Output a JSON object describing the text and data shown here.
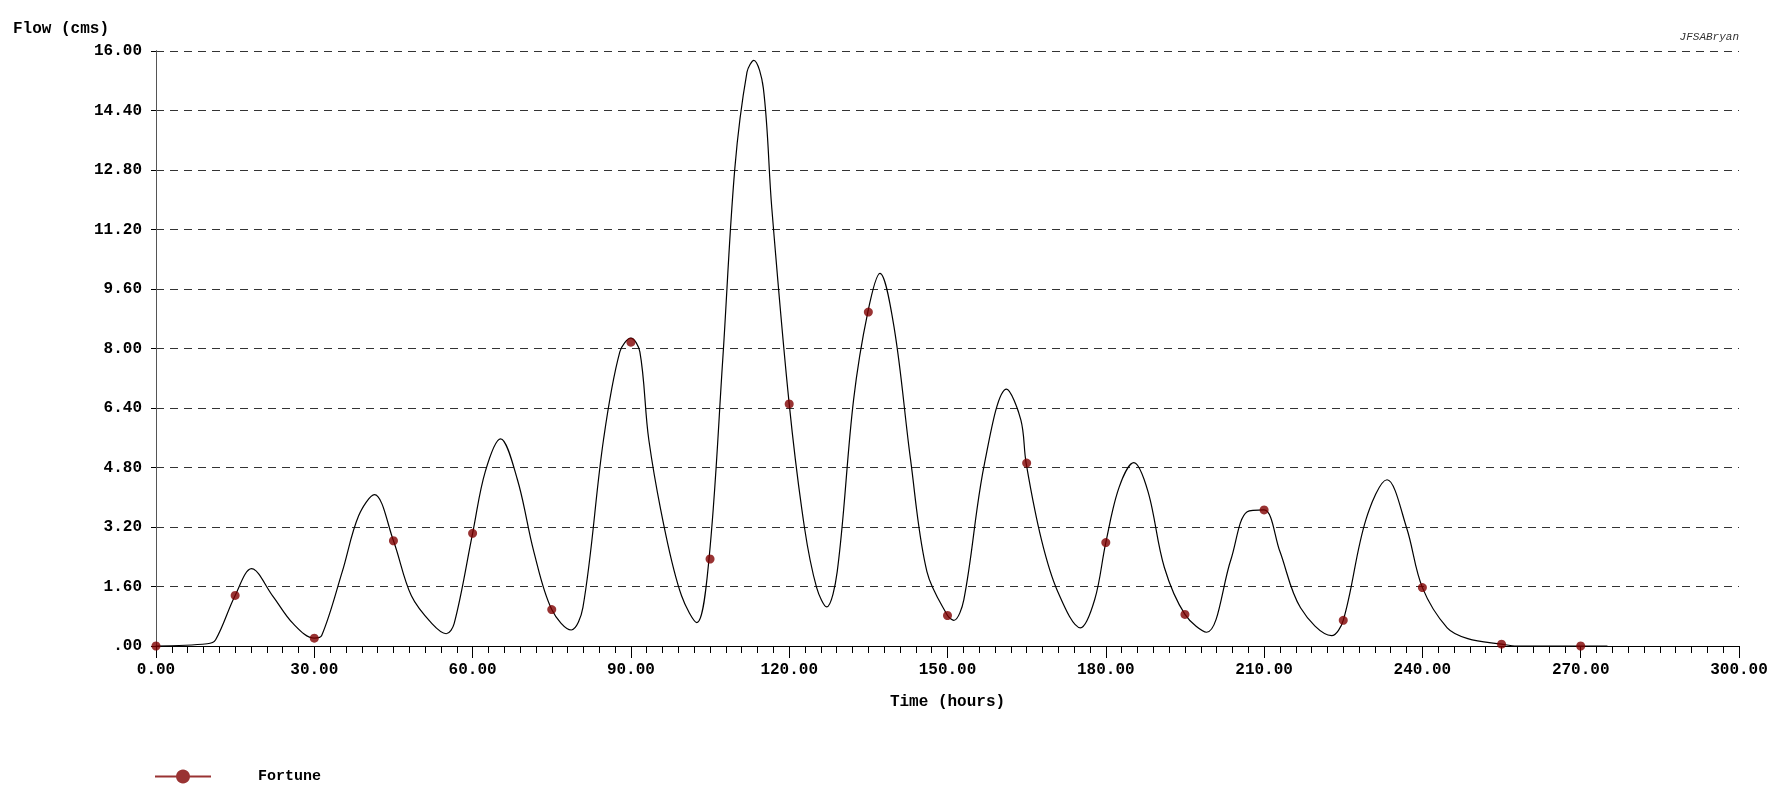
{
  "chart_data": {
    "type": "line",
    "ylabel": "Flow (cms)",
    "xlabel": "Time (hours)",
    "annotations": [
      "JFSABryan"
    ],
    "xlim": [
      0,
      300
    ],
    "xticks": [
      {
        "value": 0,
        "label": "0.00"
      },
      {
        "value": 3,
        "label": null
      },
      {
        "value": 6,
        "label": null
      },
      {
        "value": 9,
        "label": null
      },
      {
        "value": 12,
        "label": null
      },
      {
        "value": 15,
        "label": null
      },
      {
        "value": 18,
        "label": null
      },
      {
        "value": 21,
        "label": null
      },
      {
        "value": 24,
        "label": null
      },
      {
        "value": 27,
        "label": null
      },
      {
        "value": 30,
        "label": "30.00"
      },
      {
        "value": 33,
        "label": null
      },
      {
        "value": 36,
        "label": null
      },
      {
        "value": 39,
        "label": null
      },
      {
        "value": 42,
        "label": null
      },
      {
        "value": 45,
        "label": null
      },
      {
        "value": 48,
        "label": null
      },
      {
        "value": 51,
        "label": null
      },
      {
        "value": 54,
        "label": null
      },
      {
        "value": 57,
        "label": null
      },
      {
        "value": 60,
        "label": "60.00"
      },
      {
        "value": 63,
        "label": null
      },
      {
        "value": 66,
        "label": null
      },
      {
        "value": 69,
        "label": null
      },
      {
        "value": 72,
        "label": null
      },
      {
        "value": 75,
        "label": null
      },
      {
        "value": 78,
        "label": null
      },
      {
        "value": 81,
        "label": null
      },
      {
        "value": 84,
        "label": null
      },
      {
        "value": 87,
        "label": null
      },
      {
        "value": 90,
        "label": "90.00"
      },
      {
        "value": 93,
        "label": null
      },
      {
        "value": 96,
        "label": null
      },
      {
        "value": 99,
        "label": null
      },
      {
        "value": 102,
        "label": null
      },
      {
        "value": 105,
        "label": null
      },
      {
        "value": 108,
        "label": null
      },
      {
        "value": 111,
        "label": null
      },
      {
        "value": 114,
        "label": null
      },
      {
        "value": 117,
        "label": null
      },
      {
        "value": 120,
        "label": "120.00"
      },
      {
        "value": 123,
        "label": null
      },
      {
        "value": 126,
        "label": null
      },
      {
        "value": 129,
        "label": null
      },
      {
        "value": 132,
        "label": null
      },
      {
        "value": 135,
        "label": null
      },
      {
        "value": 138,
        "label": null
      },
      {
        "value": 141,
        "label": null
      },
      {
        "value": 144,
        "label": null
      },
      {
        "value": 147,
        "label": null
      },
      {
        "value": 150,
        "label": "150.00"
      },
      {
        "value": 153,
        "label": null
      },
      {
        "value": 156,
        "label": null
      },
      {
        "value": 159,
        "label": null
      },
      {
        "value": 162,
        "label": null
      },
      {
        "value": 165,
        "label": null
      },
      {
        "value": 168,
        "label": null
      },
      {
        "value": 171,
        "label": null
      },
      {
        "value": 174,
        "label": null
      },
      {
        "value": 177,
        "label": null
      },
      {
        "value": 180,
        "label": "180.00"
      },
      {
        "value": 183,
        "label": null
      },
      {
        "value": 186,
        "label": null
      },
      {
        "value": 189,
        "label": null
      },
      {
        "value": 192,
        "label": null
      },
      {
        "value": 195,
        "label": null
      },
      {
        "value": 198,
        "label": null
      },
      {
        "value": 201,
        "label": null
      },
      {
        "value": 204,
        "label": null
      },
      {
        "value": 207,
        "label": null
      },
      {
        "value": 210,
        "label": "210.00"
      },
      {
        "value": 213,
        "label": null
      },
      {
        "value": 216,
        "label": null
      },
      {
        "value": 219,
        "label": null
      },
      {
        "value": 222,
        "label": null
      },
      {
        "value": 225,
        "label": null
      },
      {
        "value": 228,
        "label": null
      },
      {
        "value": 231,
        "label": null
      },
      {
        "value": 234,
        "label": null
      },
      {
        "value": 237,
        "label": null
      },
      {
        "value": 240,
        "label": "240.00"
      },
      {
        "value": 243,
        "label": null
      },
      {
        "value": 246,
        "label": null
      },
      {
        "value": 249,
        "label": null
      },
      {
        "value": 252,
        "label": null
      },
      {
        "value": 255,
        "label": null
      },
      {
        "value": 258,
        "label": null
      },
      {
        "value": 261,
        "label": null
      },
      {
        "value": 264,
        "label": null
      },
      {
        "value": 267,
        "label": null
      },
      {
        "value": 270,
        "label": "270.00"
      },
      {
        "value": 273,
        "label": null
      },
      {
        "value": 276,
        "label": null
      },
      {
        "value": 279,
        "label": null
      },
      {
        "value": 282,
        "label": null
      },
      {
        "value": 285,
        "label": null
      },
      {
        "value": 288,
        "label": null
      },
      {
        "value": 291,
        "label": null
      },
      {
        "value": 294,
        "label": null
      },
      {
        "value": 297,
        "label": null
      },
      {
        "value": 300,
        "label": "300.00"
      }
    ],
    "ylim": [
      0,
      16
    ],
    "yticks": [
      {
        "value": 0,
        "label": ".00"
      },
      {
        "value": 1.6,
        "label": "1.60"
      },
      {
        "value": 3.2,
        "label": "3.20"
      },
      {
        "value": 4.8,
        "label": "4.80"
      },
      {
        "value": 6.4,
        "label": "6.40"
      },
      {
        "value": 8,
        "label": "8.00"
      },
      {
        "value": 9.6,
        "label": "9.60"
      },
      {
        "value": 11.2,
        "label": "11.20"
      },
      {
        "value": 12.8,
        "label": "12.80"
      },
      {
        "value": 14.4,
        "label": "14.40"
      },
      {
        "value": 16,
        "label": "16.00"
      }
    ],
    "grid": "y",
    "legend": "bottom left",
    "series": [
      {
        "type": "line",
        "color": "#000000",
        "marker": "none",
        "x": [
          0,
          9.7,
          11.3,
          15,
          18.1,
          22.1,
          26,
          30,
          31.4,
          35.3,
          38.4,
          41.4,
          45,
          48.4,
          52.3,
          55,
          56.5,
          60,
          62.4,
          65.3,
          68.5,
          71.6,
          75,
          78.7,
          80.9,
          84.8,
          87.9,
          90,
          91.7,
          93.4,
          96.5,
          99.6,
          102.5,
          104.8,
          107.4,
          109.7,
          112,
          113.3,
          115.1,
          116.7,
          120,
          122.9,
          125.2,
          127.1,
          129.1,
          132.2,
          134.9,
          137.2,
          139.9,
          143,
          146.1,
          150,
          151.2,
          153.1,
          157,
          161.2,
          163.9,
          164.9,
          167.8,
          170.9,
          175.2,
          177.9,
          180,
          182.5,
          185.3,
          188,
          191.1,
          195,
          199.1,
          203.7,
          206.8,
          210,
          213,
          216.9,
          222.8,
          225,
          229.3,
          233.3,
          237,
          240,
          244.7,
          248.6,
          255,
          257.9,
          275
        ],
        "values": [
          0,
          0.06,
          0.17,
          1.36,
          2.08,
          1.35,
          0.6,
          0.21,
          0.28,
          2,
          3.5,
          4.07,
          2.83,
          1.35,
          0.6,
          0.33,
          0.6,
          3.03,
          4.69,
          5.57,
          4.47,
          2.54,
          0.98,
          0.43,
          1.03,
          5.54,
          7.91,
          8.28,
          7.91,
          5.54,
          3.07,
          1.35,
          0.63,
          2.34,
          7.69,
          12.85,
          15.43,
          15.75,
          15,
          11.78,
          6.51,
          3.18,
          1.57,
          1.05,
          2,
          6.62,
          8.98,
          10.02,
          8.55,
          5.01,
          2,
          0.82,
          0.69,
          1.25,
          4.9,
          6.91,
          6.08,
          4.92,
          2.86,
          1.46,
          0.49,
          1.25,
          2.78,
          4.26,
          4.93,
          4.15,
          2.11,
          0.85,
          0.37,
          2.32,
          3.61,
          3.66,
          2.54,
          1.03,
          0.28,
          0.69,
          3.4,
          4.47,
          3.18,
          1.57,
          0.49,
          0.2,
          0.05,
          0,
          0
        ]
      },
      {
        "type": "scatter",
        "name": "Fortune",
        "color": "#800000",
        "marker": "circle",
        "x": [
          0,
          15,
          30,
          45,
          60,
          75,
          90,
          105,
          120,
          135,
          150,
          165,
          180,
          195,
          210,
          225,
          240,
          255,
          270
        ],
        "values": [
          0,
          1.36,
          0.21,
          2.83,
          3.03,
          0.98,
          8.17,
          2.34,
          6.51,
          8.98,
          0.82,
          4.92,
          2.78,
          0.85,
          3.66,
          0.69,
          1.57,
          0.05,
          0
        ]
      }
    ]
  }
}
